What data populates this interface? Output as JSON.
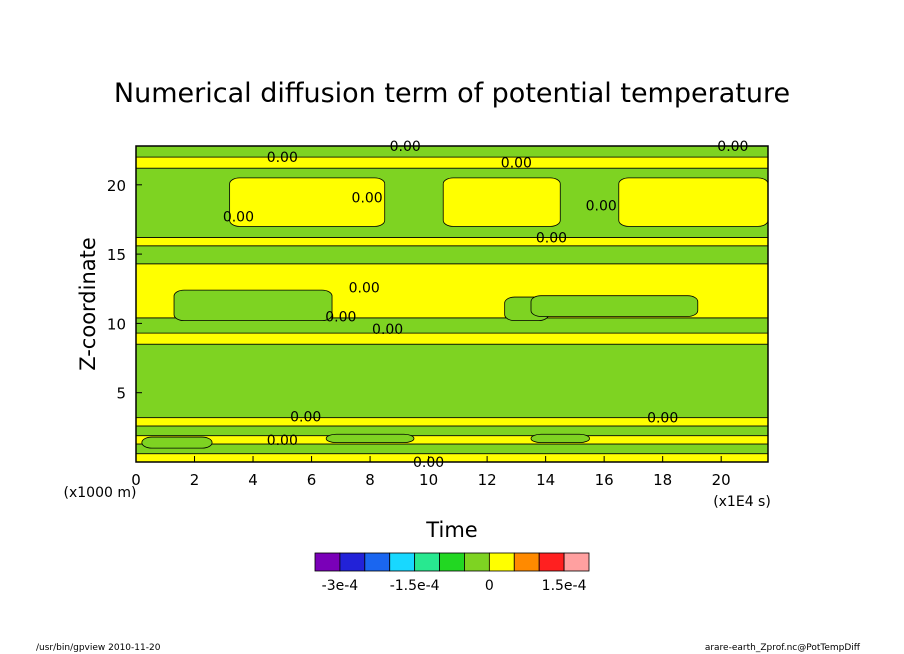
{
  "chart_data": {
    "type": "heatmap",
    "title": "Numerical diffusion term of potential temperature",
    "xlabel": "Time",
    "ylabel": "Z-coordinate",
    "x_unit": "(x1E4 s)",
    "y_unit": "(x1000 m)",
    "xlim": [
      0,
      21.6
    ],
    "ylim": [
      0,
      22.8
    ],
    "x_ticks": [
      0,
      2,
      4,
      6,
      8,
      10,
      12,
      14,
      16,
      18,
      20
    ],
    "y_ticks": [
      5,
      10,
      15,
      20
    ],
    "contour_label": "0.00",
    "colorbar": {
      "levels": [
        -0.0003,
        -0.00025,
        -0.0002,
        -0.00015,
        -0.0001,
        -5e-05,
        0,
        5e-05,
        0.0001,
        0.00015,
        0.0002
      ],
      "colors": [
        "#7a00b8",
        "#2222d8",
        "#1a66f0",
        "#18d8ff",
        "#28e890",
        "#22d722",
        "#7ed322",
        "#ffff00",
        "#ff8a00",
        "#ff2020",
        "#ffa0a0"
      ],
      "tick_labels": [
        "-3e-4",
        "-1.5e-4",
        "0",
        "1.5e-4"
      ],
      "tick_values": [
        -0.0003,
        -0.00015,
        0,
        0.00015
      ]
    },
    "bands": [
      {
        "z": [
          0,
          0.6
        ],
        "value": 2e-05
      },
      {
        "z": [
          0.6,
          1.3
        ],
        "value": -2e-05
      },
      {
        "z": [
          1.3,
          1.9
        ],
        "value": 2e-05
      },
      {
        "z": [
          1.9,
          2.6
        ],
        "value": -2e-05
      },
      {
        "z": [
          2.6,
          3.2
        ],
        "value": 2e-05
      },
      {
        "z": [
          3.2,
          8.5
        ],
        "value": -2e-05
      },
      {
        "z": [
          8.5,
          9.3
        ],
        "value": 2e-05
      },
      {
        "z": [
          9.3,
          10.4
        ],
        "value": -2e-05
      },
      {
        "z": [
          10.4,
          14.3
        ],
        "value": 2e-05
      },
      {
        "z": [
          14.3,
          15.6
        ],
        "value": -2e-05
      },
      {
        "z": [
          15.6,
          16.2
        ],
        "value": 2e-05
      },
      {
        "z": [
          16.2,
          21.2
        ],
        "value": -2e-05
      },
      {
        "z": [
          21.2,
          22.0
        ],
        "value": 2e-05
      },
      {
        "z": [
          22.0,
          22.8
        ],
        "value": -2e-05
      }
    ],
    "patches": [
      {
        "x": [
          1.3,
          6.7
        ],
        "z": [
          10.2,
          12.4
        ],
        "value": -2e-05
      },
      {
        "x": [
          12.6,
          14.1
        ],
        "z": [
          10.2,
          11.9
        ],
        "value": -2e-05
      },
      {
        "x": [
          13.5,
          19.2
        ],
        "z": [
          10.5,
          12.0
        ],
        "value": -2e-05
      },
      {
        "x": [
          6.5,
          9.5
        ],
        "z": [
          1.4,
          2.0
        ],
        "value": -2e-05
      },
      {
        "x": [
          13.5,
          15.5
        ],
        "z": [
          1.4,
          2.0
        ],
        "value": -2e-05
      },
      {
        "x": [
          0.2,
          2.6
        ],
        "z": [
          1.0,
          1.8
        ],
        "value": -5e-05
      },
      {
        "x": [
          3.2,
          8.5
        ],
        "z": [
          17.0,
          20.5
        ],
        "value": 2e-05
      },
      {
        "x": [
          10.5,
          14.5
        ],
        "z": [
          17.0,
          20.5
        ],
        "value": 2e-05
      },
      {
        "x": [
          16.5,
          21.6
        ],
        "z": [
          17.0,
          20.5
        ],
        "value": 2e-05
      }
    ],
    "contour_label_positions": [
      {
        "x": 9.2,
        "z": 22.8
      },
      {
        "x": 5.0,
        "z": 22.0
      },
      {
        "x": 13.0,
        "z": 21.6
      },
      {
        "x": 20.4,
        "z": 22.8
      },
      {
        "x": 7.9,
        "z": 19.1
      },
      {
        "x": 15.9,
        "z": 18.5
      },
      {
        "x": 3.5,
        "z": 17.7
      },
      {
        "x": 14.2,
        "z": 16.2
      },
      {
        "x": 7.8,
        "z": 12.6
      },
      {
        "x": 7.0,
        "z": 10.5
      },
      {
        "x": 8.6,
        "z": 9.6
      },
      {
        "x": 5.8,
        "z": 3.3
      },
      {
        "x": 18.0,
        "z": 3.2
      },
      {
        "x": 5.0,
        "z": 1.6
      },
      {
        "x": 10.0,
        "z": 0.0
      }
    ]
  },
  "footer": {
    "left": "/usr/bin/gpview   2010-11-20",
    "right": "arare-earth_Zprof.nc@PotTempDiff"
  }
}
